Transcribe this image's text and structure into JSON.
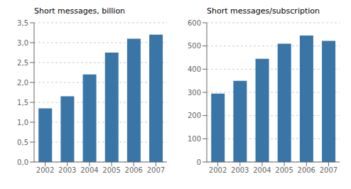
{
  "chart_data": [
    {
      "type": "bar",
      "title": "Short messages, billion",
      "categories": [
        "2002",
        "2003",
        "2004",
        "2005",
        "2006",
        "2007"
      ],
      "values": [
        1.35,
        1.65,
        2.2,
        2.75,
        3.1,
        3.2
      ],
      "color": "#3A75A8",
      "ylim": [
        0,
        3.5
      ],
      "yticks": [
        {
          "value": 0.0,
          "label": "0,0"
        },
        {
          "value": 0.5,
          "label": "0,5"
        },
        {
          "value": 1.0,
          "label": "1,0"
        },
        {
          "value": 1.5,
          "label": "1,5"
        },
        {
          "value": 2.0,
          "label": "2,0"
        },
        {
          "value": 2.5,
          "label": "2,5"
        },
        {
          "value": 3.0,
          "label": "3,0"
        },
        {
          "value": 3.5,
          "label": "3,5"
        }
      ],
      "grid": true
    },
    {
      "type": "bar",
      "title": "Short messages/subscription",
      "categories": [
        "2002",
        "2003",
        "2004",
        "2005",
        "2006",
        "2007"
      ],
      "values": [
        295,
        350,
        445,
        510,
        545,
        522
      ],
      "color": "#3A75A8",
      "ylim": [
        0,
        600
      ],
      "yticks": [
        0,
        100,
        200,
        300,
        400,
        500,
        600
      ],
      "grid": true
    }
  ]
}
